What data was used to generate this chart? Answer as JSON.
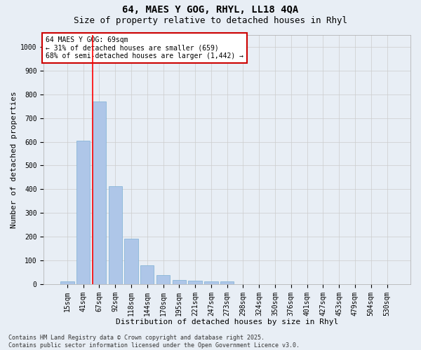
{
  "title1": "64, MAES Y GOG, RHYL, LL18 4QA",
  "title2": "Size of property relative to detached houses in Rhyl",
  "xlabel": "Distribution of detached houses by size in Rhyl",
  "ylabel": "Number of detached properties",
  "categories": [
    "15sqm",
    "41sqm",
    "67sqm",
    "92sqm",
    "118sqm",
    "144sqm",
    "170sqm",
    "195sqm",
    "221sqm",
    "247sqm",
    "273sqm",
    "298sqm",
    "324sqm",
    "350sqm",
    "376sqm",
    "401sqm",
    "427sqm",
    "453sqm",
    "479sqm",
    "504sqm",
    "530sqm"
  ],
  "values": [
    12,
    605,
    770,
    413,
    192,
    78,
    37,
    18,
    15,
    12,
    12,
    0,
    0,
    0,
    0,
    0,
    0,
    0,
    0,
    0,
    0
  ],
  "bar_color": "#aec6e8",
  "bar_edge_color": "#7aafd4",
  "grid_color": "#cccccc",
  "bg_color": "#e8eef5",
  "red_line_index": 2,
  "annotation_text": "64 MAES Y GOG: 69sqm\n← 31% of detached houses are smaller (659)\n68% of semi-detached houses are larger (1,442) →",
  "annotation_box_facecolor": "#ffffff",
  "annotation_box_edge": "#cc0000",
  "ylim": [
    0,
    1050
  ],
  "yticks": [
    0,
    100,
    200,
    300,
    400,
    500,
    600,
    700,
    800,
    900,
    1000
  ],
  "footer": "Contains HM Land Registry data © Crown copyright and database right 2025.\nContains public sector information licensed under the Open Government Licence v3.0.",
  "title_fontsize": 10,
  "subtitle_fontsize": 9,
  "tick_fontsize": 7,
  "label_fontsize": 8,
  "annotation_fontsize": 7,
  "footer_fontsize": 6
}
